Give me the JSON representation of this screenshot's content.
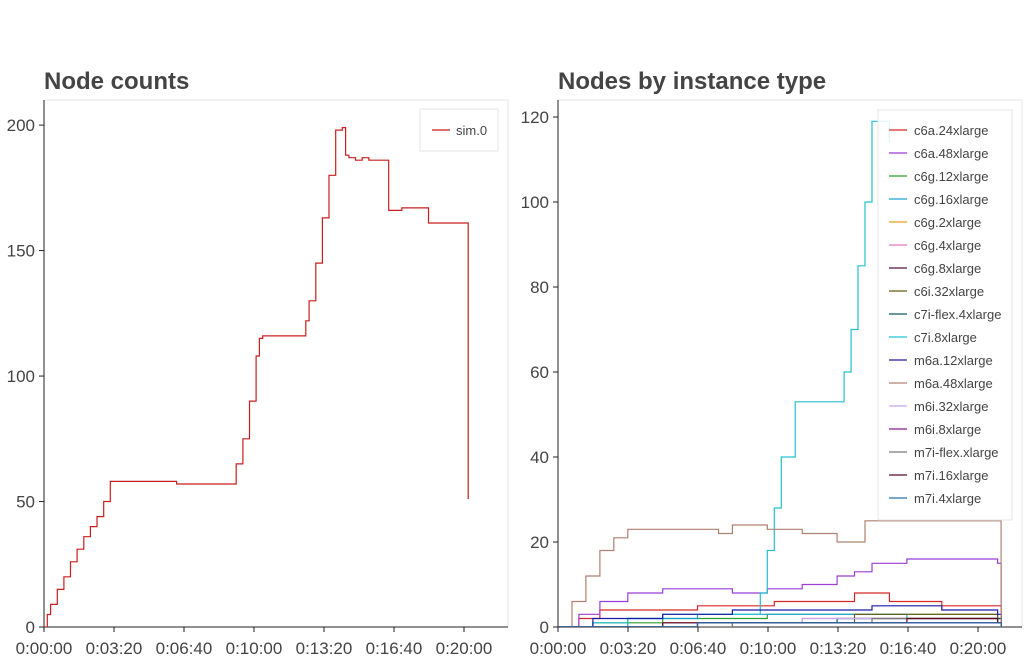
{
  "chart_data": [
    {
      "type": "line",
      "title": "Node counts",
      "xlabel": "",
      "ylabel": "",
      "x_ticks": [
        "0:00:00",
        "0:03:20",
        "0:06:40",
        "0:10:00",
        "0:13:20",
        "0:16:40",
        "0:20:00"
      ],
      "y_ticks": [
        0,
        50,
        100,
        150,
        200
      ],
      "xlim": [
        0,
        1400
      ],
      "ylim": [
        0,
        210
      ],
      "legend_position": "top-right",
      "series": [
        {
          "name": "sim.0",
          "color": "#c81e1e",
          "x": [
            0,
            10,
            20,
            40,
            60,
            80,
            100,
            120,
            140,
            160,
            180,
            200,
            220,
            240,
            260,
            280,
            300,
            320,
            360,
            400,
            440,
            480,
            520,
            560,
            580,
            600,
            620,
            640,
            650,
            660,
            680,
            700,
            720,
            740,
            760,
            780,
            790,
            800,
            820,
            840,
            860,
            880,
            900,
            910,
            920,
            940,
            960,
            980,
            1000,
            1020,
            1040,
            1060,
            1080,
            1100,
            1120,
            1140,
            1160,
            1180,
            1200,
            1220,
            1240,
            1260,
            1270,
            1280
          ],
          "values": [
            0,
            5,
            9,
            15,
            20,
            26,
            31,
            36,
            40,
            44,
            50,
            58,
            58,
            58,
            58,
            58,
            58,
            58,
            58,
            57,
            57,
            57,
            57,
            57,
            65,
            75,
            90,
            108,
            115,
            116,
            116,
            116,
            116,
            116,
            116,
            116,
            122,
            130,
            145,
            163,
            180,
            198,
            199,
            188,
            187,
            186,
            187,
            186,
            186,
            186,
            166,
            166,
            167,
            167,
            167,
            167,
            161,
            161,
            161,
            161,
            161,
            161,
            161,
            51
          ]
        }
      ]
    },
    {
      "type": "line",
      "title": "Nodes by instance type",
      "xlabel": "",
      "ylabel": "",
      "x_ticks": [
        "0:00:00",
        "0:03:20",
        "0:06:40",
        "0:10:00",
        "0:13:20",
        "0:16:40",
        "0:20:00"
      ],
      "y_ticks": [
        0,
        20,
        40,
        60,
        80,
        100,
        120
      ],
      "xlim": [
        0,
        1330
      ],
      "ylim": [
        0,
        124
      ],
      "legend_position": "top-right",
      "series": [
        {
          "name": "c6a.24xlarge",
          "color": "#d62728",
          "x": [
            0,
            60,
            120,
            400,
            620,
            850,
            950,
            1100,
            1260,
            1270
          ],
          "values": [
            0,
            2,
            4,
            5,
            6,
            8,
            6,
            5,
            5,
            0
          ]
        },
        {
          "name": "c6a.48xlarge",
          "color": "#9b3dd6",
          "x": [
            0,
            60,
            120,
            200,
            300,
            400,
            500,
            600,
            700,
            800,
            850,
            900,
            1000,
            1100,
            1260,
            1270
          ],
          "values": [
            0,
            3,
            6,
            8,
            9,
            9,
            8,
            9,
            10,
            12,
            13,
            15,
            16,
            16,
            15,
            0
          ]
        },
        {
          "name": "c6g.12xlarge",
          "color": "#2ca02c",
          "x": [
            0,
            100,
            300,
            600,
            900,
            1100,
            1260,
            1270
          ],
          "values": [
            0,
            1,
            2,
            3,
            3,
            3,
            2,
            0
          ]
        },
        {
          "name": "c6g.16xlarge",
          "color": "#1f9fd6",
          "x": [
            0,
            200,
            400,
            700,
            1000,
            1260,
            1270
          ],
          "values": [
            0,
            2,
            3,
            3,
            2,
            2,
            0
          ]
        },
        {
          "name": "c6g.2xlarge",
          "color": "#e8a020",
          "x": [
            0,
            300,
            600,
            900,
            1260,
            1270
          ],
          "values": [
            0,
            1,
            1,
            2,
            1,
            0
          ]
        },
        {
          "name": "c6g.4xlarge",
          "color": "#e377c2",
          "x": [
            0,
            300,
            700,
            1000,
            1260,
            1270
          ],
          "values": [
            0,
            1,
            2,
            2,
            1,
            0
          ]
        },
        {
          "name": "c6g.8xlarge",
          "color": "#5a1040",
          "x": [
            0,
            400,
            800,
            1260,
            1270
          ],
          "values": [
            0,
            1,
            1,
            1,
            0
          ]
        },
        {
          "name": "c6i.32xlarge",
          "color": "#6b5a10",
          "x": [
            0,
            500,
            850,
            1100,
            1260,
            1270
          ],
          "values": [
            0,
            1,
            3,
            3,
            2,
            0
          ]
        },
        {
          "name": "c7i-flex.4xlarge",
          "color": "#0a5a6a",
          "x": [
            0,
            400,
            800,
            1260,
            1270
          ],
          "values": [
            0,
            1,
            2,
            2,
            0
          ]
        },
        {
          "name": "c7i.8xlarge",
          "color": "#23c0d0",
          "x": [
            0,
            100,
            200,
            300,
            400,
            500,
            560,
            580,
            600,
            620,
            640,
            680,
            720,
            760,
            800,
            820,
            840,
            860,
            880,
            900,
            920,
            950
          ],
          "values": [
            0,
            1,
            2,
            3,
            3,
            3,
            3,
            8,
            18,
            28,
            40,
            53,
            53,
            53,
            53,
            60,
            70,
            85,
            100,
            119,
            119,
            114
          ]
        },
        {
          "name": "m6a.12xlarge",
          "color": "#1a1aa8",
          "x": [
            0,
            100,
            300,
            500,
            700,
            900,
            1100,
            1260,
            1270
          ],
          "values": [
            0,
            2,
            3,
            4,
            4,
            5,
            4,
            3,
            0
          ]
        },
        {
          "name": "m6a.48xlarge",
          "color": "#b08070",
          "x": [
            0,
            40,
            80,
            120,
            160,
            200,
            300,
            400,
            460,
            500,
            600,
            700,
            800,
            860,
            880,
            920,
            1000,
            1100,
            1260,
            1270
          ],
          "values": [
            0,
            6,
            12,
            18,
            21,
            23,
            23,
            23,
            22,
            24,
            23,
            22,
            20,
            20,
            25,
            25,
            25,
            25,
            25,
            0
          ]
        },
        {
          "name": "m6i.32xlarge",
          "color": "#c8a8e8",
          "x": [
            0,
            300,
            700,
            1000,
            1260,
            1270
          ],
          "values": [
            0,
            1,
            2,
            2,
            1,
            0
          ]
        },
        {
          "name": "m6i.8xlarge",
          "color": "#8b1a8b",
          "x": [
            0,
            400,
            800,
            1100,
            1260,
            1270
          ],
          "values": [
            0,
            1,
            1,
            1,
            1,
            0
          ]
        },
        {
          "name": "m7i-flex.xlarge",
          "color": "#7a7a7a",
          "x": [
            0,
            500,
            900,
            1260,
            1270
          ],
          "values": [
            0,
            1,
            2,
            1,
            0
          ]
        },
        {
          "name": "m7i.16xlarge",
          "color": "#5a0a1a",
          "x": [
            0,
            300,
            700,
            1000,
            1260,
            1270
          ],
          "values": [
            0,
            1,
            1,
            2,
            1,
            0
          ]
        },
        {
          "name": "m7i.4xlarge",
          "color": "#2070b0",
          "x": [
            0,
            400,
            800,
            1260,
            1270
          ],
          "values": [
            0,
            1,
            1,
            1,
            0
          ]
        }
      ]
    }
  ]
}
